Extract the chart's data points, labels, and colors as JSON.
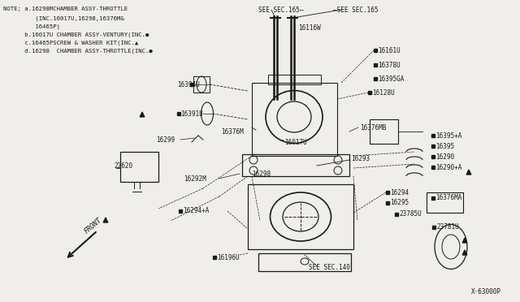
{
  "bg_color": "#f0eeea",
  "line_color": "#1a1a1a",
  "text_color": "#1a1a1a",
  "figsize": [
    6.4,
    3.72
  ],
  "dpi": 100,
  "note_lines": [
    "NOTE; a.16298MCHAMBER ASSY-THROTTLE",
    "        (INC.16017U,16298,16376M&",
    "        16465P)",
    "     b.16017U CHAMBER ASSY-VENTURY(INC.",
    "     c.16465PSCREW & WASHER KIT(INC.",
    "     d.16298  CHAMBER ASSY-THROTTLE(INC."
  ]
}
